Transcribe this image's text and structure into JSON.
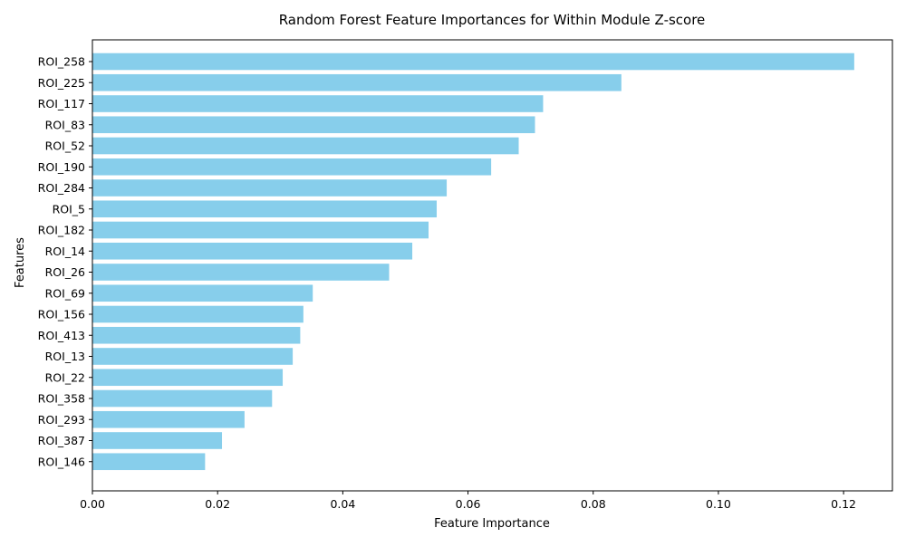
{
  "chart_data": {
    "type": "bar",
    "orientation": "horizontal",
    "title": "Random Forest Feature Importances for Within Module Z-score",
    "xlabel": "Feature Importance",
    "ylabel": "Features",
    "xlim": [
      0,
      0.1278
    ],
    "xticks": [
      0.0,
      0.02,
      0.04,
      0.06,
      0.08,
      0.1,
      0.12
    ],
    "xtick_labels": [
      "0.00",
      "0.02",
      "0.04",
      "0.06",
      "0.08",
      "0.10",
      "0.12"
    ],
    "grid": false,
    "bar_color": "#87CEEB",
    "categories": [
      "ROI_258",
      "ROI_225",
      "ROI_117",
      "ROI_83",
      "ROI_52",
      "ROI_190",
      "ROI_284",
      "ROI_5",
      "ROI_182",
      "ROI_14",
      "ROI_26",
      "ROI_69",
      "ROI_156",
      "ROI_413",
      "ROI_13",
      "ROI_22",
      "ROI_358",
      "ROI_293",
      "ROI_387",
      "ROI_146"
    ],
    "values": [
      0.1217,
      0.0845,
      0.072,
      0.0707,
      0.0681,
      0.0637,
      0.0566,
      0.055,
      0.0537,
      0.0511,
      0.0474,
      0.0352,
      0.0337,
      0.0332,
      0.032,
      0.0304,
      0.0287,
      0.0243,
      0.0207,
      0.018
    ]
  }
}
